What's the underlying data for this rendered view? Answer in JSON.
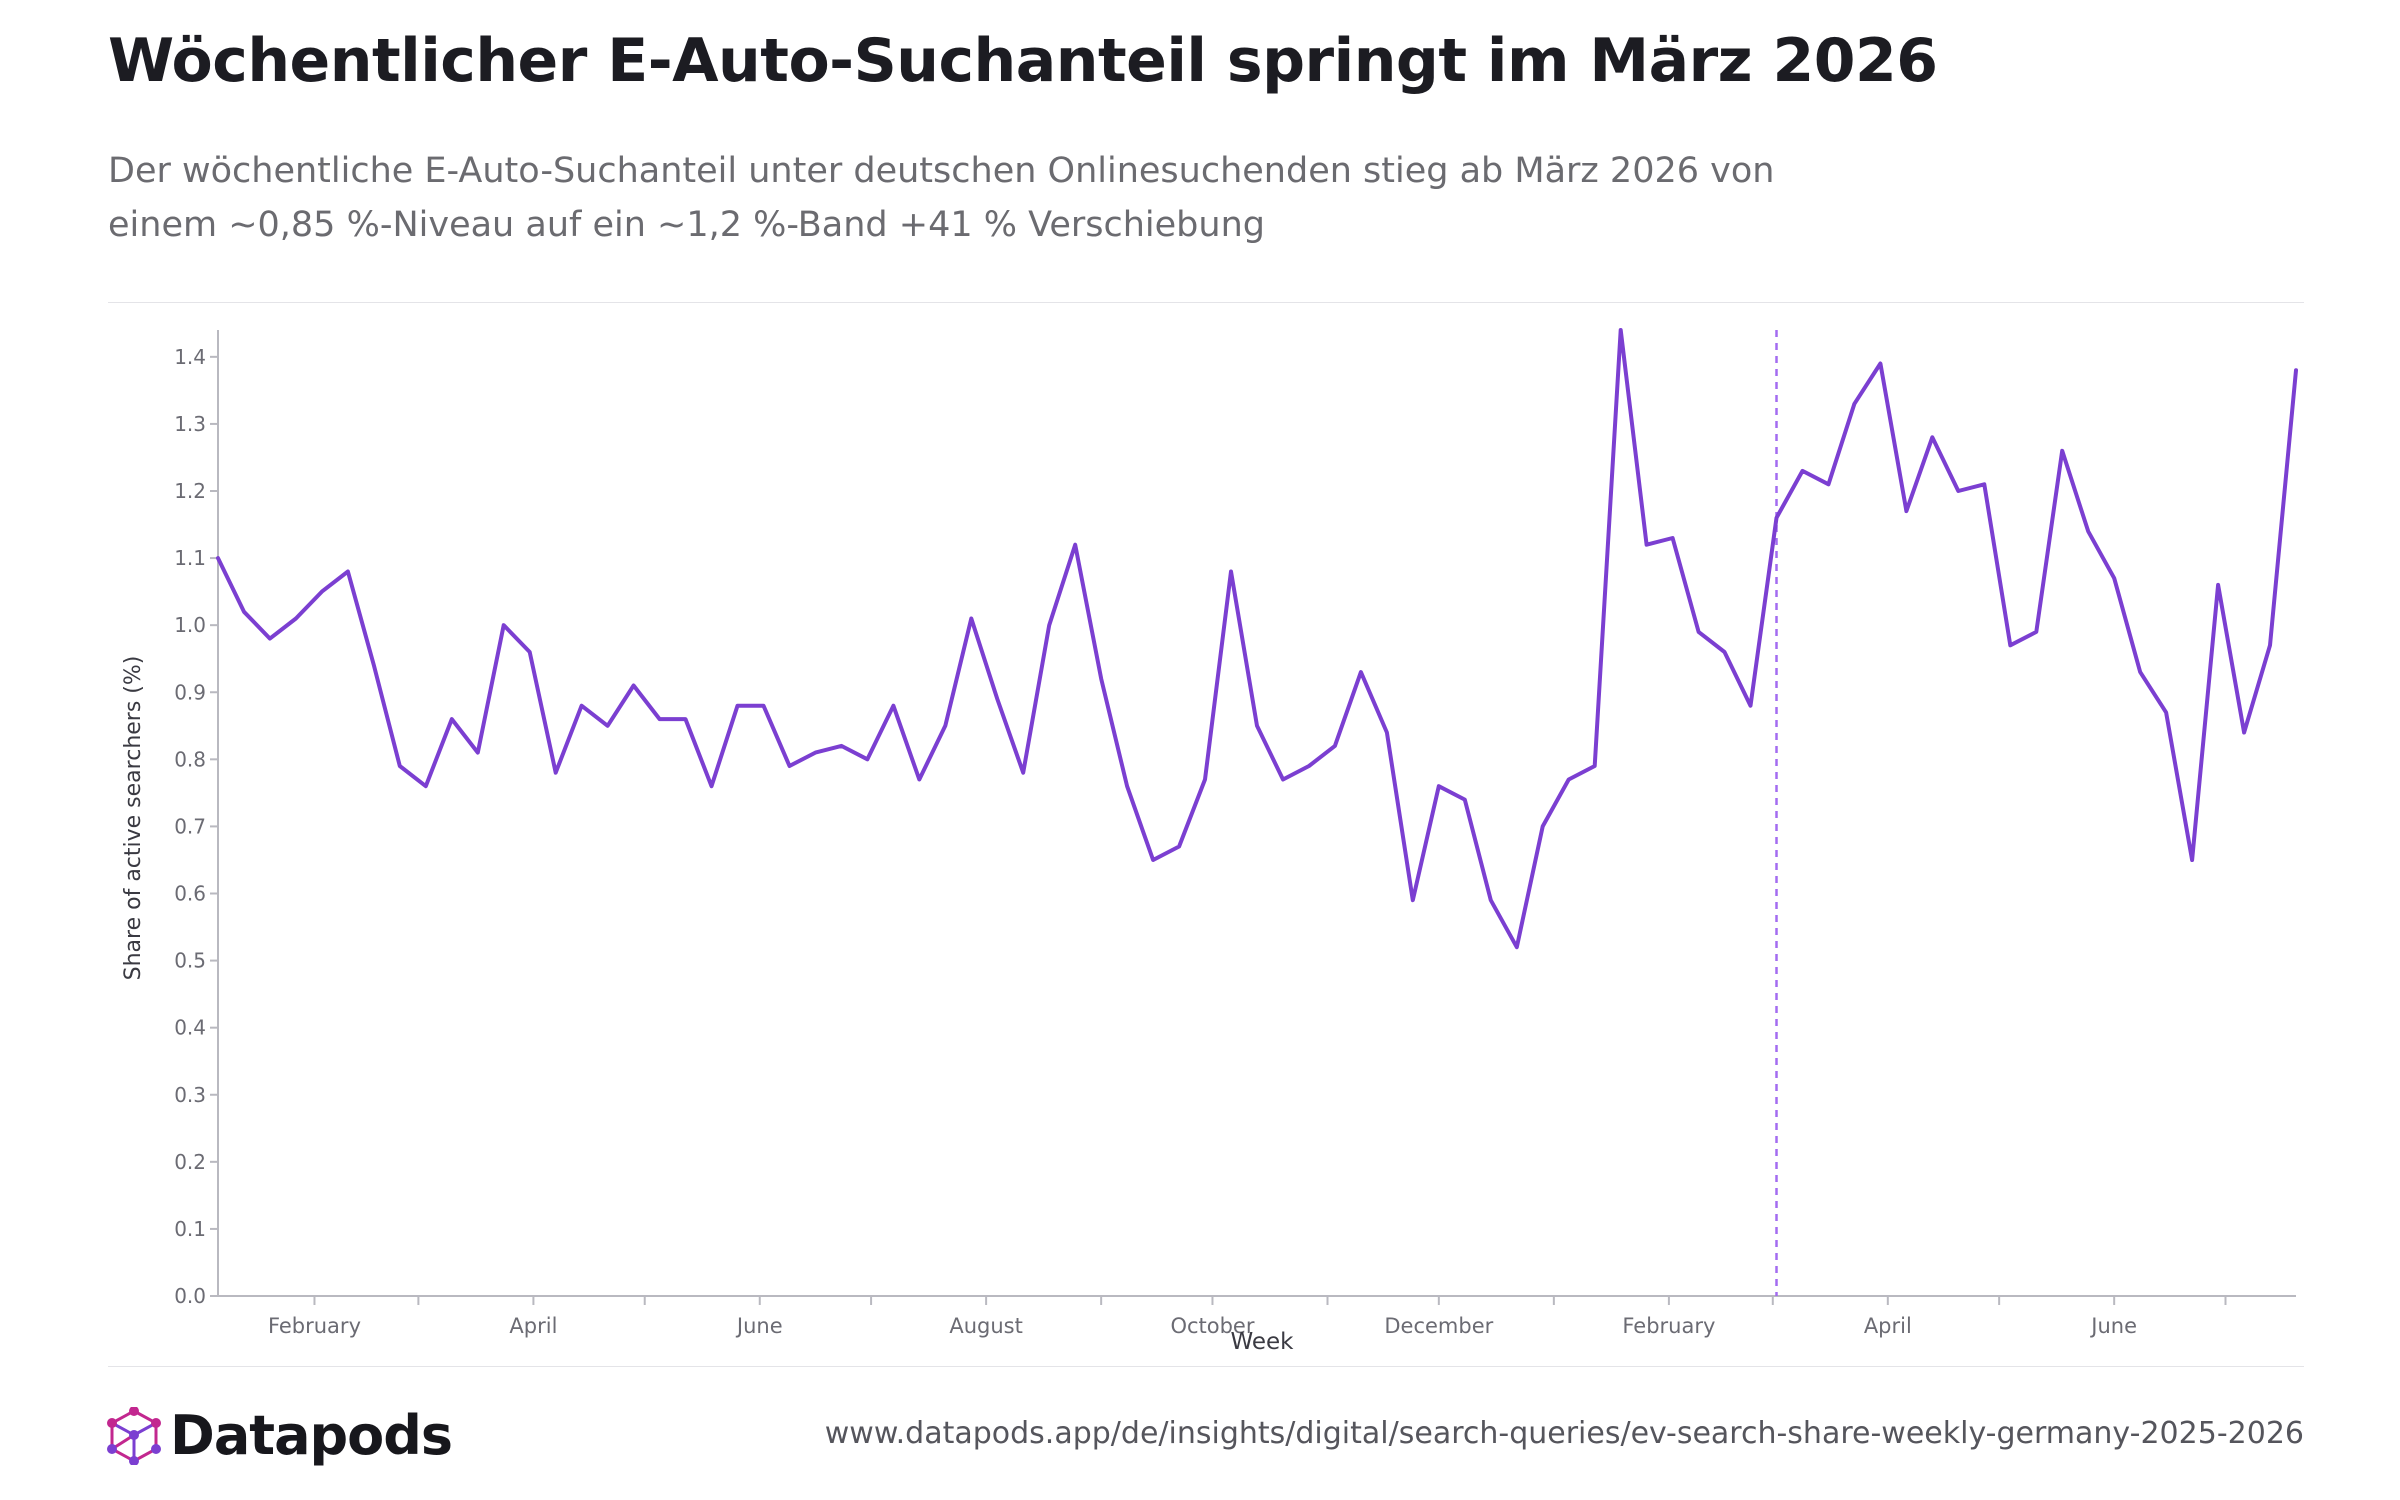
{
  "header": {
    "title": "Wöchentlicher E-Auto-Suchanteil springt im März 2026",
    "subtitle": "Der wöchentliche E-Auto-Suchanteil unter deutschen Onlinesuchenden stieg ab März 2026 von einem ~0,85 %-Niveau auf ein ~1,2 %-Band +41 % Verschiebung"
  },
  "footer": {
    "brand": "Datapods",
    "url": "www.datapods.app/de/insights/digital/search-queries/ev-search-share-weekly-germany-2025-2026"
  },
  "colors": {
    "line": "#7b3fd1",
    "marker": "#a36cf0",
    "axis": "#b9b9c0",
    "tick_text": "#6b6b73",
    "logo_magenta": "#c2278f",
    "logo_purple": "#7b3fd1"
  },
  "chart_data": {
    "type": "line",
    "xlabel": "Week",
    "ylabel": "Share of active searchers (%)",
    "ylim": [
      0,
      1.44
    ],
    "yticks": [
      "0.0",
      "0.1",
      "0.2",
      "0.3",
      "0.4",
      "0.5",
      "0.6",
      "0.7",
      "0.8",
      "0.9",
      "1.0",
      "1.1",
      "1.2",
      "1.3",
      "1.4"
    ],
    "xlim": [
      "2025-01-06",
      "2026-07-20"
    ],
    "month_labels": [
      {
        "date": "2025-02-01",
        "label": "February"
      },
      {
        "date": "2025-04-01",
        "label": "April"
      },
      {
        "date": "2025-06-01",
        "label": "June"
      },
      {
        "date": "2025-08-01",
        "label": "August"
      },
      {
        "date": "2025-10-01",
        "label": "October"
      },
      {
        "date": "2025-12-01",
        "label": "December"
      },
      {
        "date": "2026-02-01",
        "label": "February"
      },
      {
        "date": "2026-04-01",
        "label": "April"
      },
      {
        "date": "2026-06-01",
        "label": "June"
      }
    ],
    "minor_ticks": [
      "2025-03-01",
      "2025-05-01",
      "2025-07-01",
      "2025-09-01",
      "2025-11-01",
      "2026-01-01",
      "2026-03-01",
      "2026-05-01",
      "2026-07-01"
    ],
    "marker_date": "2026-03-02",
    "grid": false,
    "legend": "none",
    "series": [
      {
        "x": [
          "2025-01-06",
          "2025-01-13",
          "2025-01-20",
          "2025-01-27",
          "2025-02-03",
          "2025-02-10",
          "2025-02-17",
          "2025-02-24",
          "2025-03-03",
          "2025-03-10",
          "2025-03-17",
          "2025-03-24",
          "2025-03-31",
          "2025-04-07",
          "2025-04-14",
          "2025-04-21",
          "2025-04-28",
          "2025-05-05",
          "2025-05-12",
          "2025-05-19",
          "2025-05-26",
          "2025-06-02",
          "2025-06-09",
          "2025-06-16",
          "2025-06-23",
          "2025-06-30",
          "2025-07-07",
          "2025-07-14",
          "2025-07-21",
          "2025-07-28",
          "2025-08-04",
          "2025-08-11",
          "2025-08-18",
          "2025-08-25",
          "2025-09-01",
          "2025-09-08",
          "2025-09-15",
          "2025-09-22",
          "2025-09-29",
          "2025-10-06",
          "2025-10-13",
          "2025-10-20",
          "2025-10-27",
          "2025-11-03",
          "2025-11-10",
          "2025-11-17",
          "2025-11-24",
          "2025-12-01",
          "2025-12-08",
          "2025-12-15",
          "2025-12-22",
          "2025-12-29",
          "2026-01-05",
          "2026-01-12",
          "2026-01-19",
          "2026-01-26",
          "2026-02-02",
          "2026-02-09",
          "2026-02-16",
          "2026-02-23",
          "2026-03-02",
          "2026-03-09",
          "2026-03-16",
          "2026-03-23",
          "2026-03-30",
          "2026-04-06",
          "2026-04-13",
          "2026-04-20",
          "2026-04-27",
          "2026-05-04",
          "2026-05-11",
          "2026-05-18",
          "2026-05-25",
          "2026-06-01",
          "2026-06-08",
          "2026-06-15",
          "2026-06-22",
          "2026-06-29",
          "2026-07-06",
          "2026-07-13",
          "2026-07-20"
        ],
        "values": [
          1.1,
          1.02,
          0.98,
          1.01,
          1.05,
          1.08,
          0.94,
          0.79,
          0.76,
          0.86,
          0.81,
          1.0,
          0.96,
          0.78,
          0.88,
          0.85,
          0.91,
          0.86,
          0.86,
          0.76,
          0.88,
          0.88,
          0.79,
          0.81,
          0.82,
          0.8,
          0.88,
          0.77,
          0.85,
          1.01,
          0.89,
          0.78,
          1.0,
          1.12,
          0.92,
          0.76,
          0.65,
          0.67,
          0.77,
          1.08,
          0.85,
          0.77,
          0.79,
          0.82,
          0.93,
          0.84,
          0.59,
          0.76,
          0.74,
          0.59,
          0.52,
          0.7,
          0.77,
          0.79,
          1.44,
          1.12,
          1.13,
          0.99,
          0.96,
          0.88,
          1.16,
          1.23,
          1.21,
          1.33,
          1.39,
          1.17,
          1.28,
          1.2,
          1.21,
          0.97,
          0.99,
          1.26,
          1.14,
          1.07,
          0.93,
          0.87,
          0.65,
          1.06,
          0.84,
          0.97,
          1.38
        ]
      }
    ]
  }
}
